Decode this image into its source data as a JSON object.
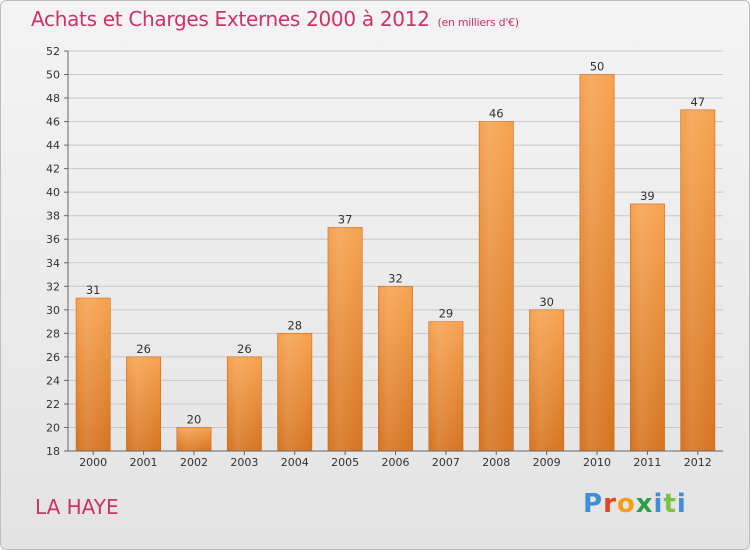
{
  "title": "Achats et Charges Externes 2000 à 2012",
  "unit": "(en milliers d'€)",
  "commune": "LA HAYE",
  "logo": "Proxiti",
  "colors": {
    "bar_top": "#f6a24f",
    "bar_bottom": "#d5731f",
    "title": "#cc3366"
  },
  "chart_data": {
    "type": "bar",
    "categories": [
      "2000",
      "2001",
      "2002",
      "2003",
      "2004",
      "2005",
      "2006",
      "2007",
      "2008",
      "2009",
      "2010",
      "2011",
      "2012"
    ],
    "values": [
      31,
      26,
      20,
      26,
      28,
      37,
      32,
      29,
      46,
      30,
      50,
      39,
      47
    ],
    "title": "Achats et Charges Externes 2000 à 2012",
    "xlabel": "",
    "ylabel": "",
    "ylim": [
      18,
      52
    ],
    "yticks": [
      18,
      20,
      22,
      24,
      26,
      28,
      30,
      32,
      34,
      36,
      38,
      40,
      42,
      44,
      46,
      48,
      50,
      52
    ],
    "grid": true,
    "data_labels": true
  }
}
